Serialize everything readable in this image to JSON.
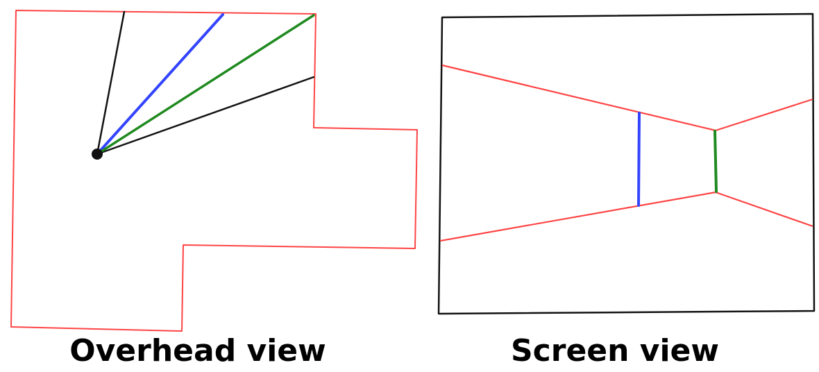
{
  "captions": {
    "overhead": "Overhead view",
    "screen": "Screen view"
  },
  "colors": {
    "wall": "#ff4444",
    "blue_ray": "#3344ff",
    "green_ray": "#1f8a1f",
    "frame": "#111111",
    "fov_ray": "#111111",
    "viewer": "#111111"
  }
}
